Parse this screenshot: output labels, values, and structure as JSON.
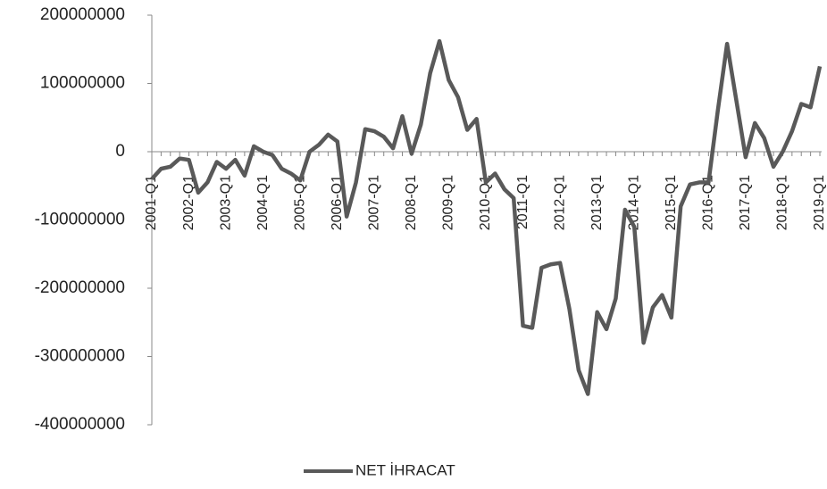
{
  "chart_data": {
    "type": "line",
    "categories": [
      "2001-Q1",
      null,
      null,
      null,
      "2002-Q1",
      null,
      null,
      null,
      "2003-Q1",
      null,
      null,
      null,
      "2004-Q1",
      null,
      null,
      null,
      "2005-Q1",
      null,
      null,
      null,
      "2006-Q1",
      null,
      null,
      null,
      "2007-Q1",
      null,
      null,
      null,
      "2008-Q1",
      null,
      null,
      null,
      "2009-Q1",
      null,
      null,
      null,
      "2010-Q1",
      null,
      null,
      null,
      "2011-Q1",
      null,
      null,
      null,
      "2012-Q1",
      null,
      null,
      null,
      "2013-Q1",
      null,
      null,
      null,
      "2014-Q1",
      null,
      null,
      null,
      "2015-Q1",
      null,
      null,
      null,
      "2016-Q1",
      null,
      null,
      null,
      "2017-Q1",
      null,
      null,
      null,
      "2018-Q1",
      null,
      null,
      null,
      "2019-Q1"
    ],
    "series": [
      {
        "name": "NET İHRACAT",
        "color": "#595959",
        "values": [
          -40000000,
          -25000000,
          -22000000,
          -10000000,
          -12000000,
          -60000000,
          -45000000,
          -15000000,
          -25000000,
          -12000000,
          -35000000,
          8000000,
          0,
          -5000000,
          -25000000,
          -32000000,
          -42000000,
          0,
          10000000,
          25000000,
          15000000,
          -95000000,
          -45000000,
          33000000,
          30000000,
          22000000,
          5000000,
          52000000,
          -3000000,
          40000000,
          115000000,
          162000000,
          105000000,
          80000000,
          32000000,
          48000000,
          -45000000,
          -32000000,
          -55000000,
          -68000000,
          -255000000,
          -258000000,
          -170000000,
          -165000000,
          -163000000,
          -230000000,
          -320000000,
          -355000000,
          -235000000,
          -260000000,
          -215000000,
          -85000000,
          -110000000,
          -280000000,
          -228000000,
          -210000000,
          -243000000,
          -80000000,
          -48000000,
          -45000000,
          -45000000,
          60000000,
          158000000,
          75000000,
          -8000000,
          42000000,
          20000000,
          -22000000,
          0,
          30000000,
          70000000,
          65000000,
          125000000
        ]
      }
    ],
    "ylim": [
      -400000000,
      200000000
    ],
    "yticks": [
      -400000000,
      -300000000,
      -200000000,
      -100000000,
      0,
      100000000,
      200000000
    ],
    "legend": "bottom"
  }
}
